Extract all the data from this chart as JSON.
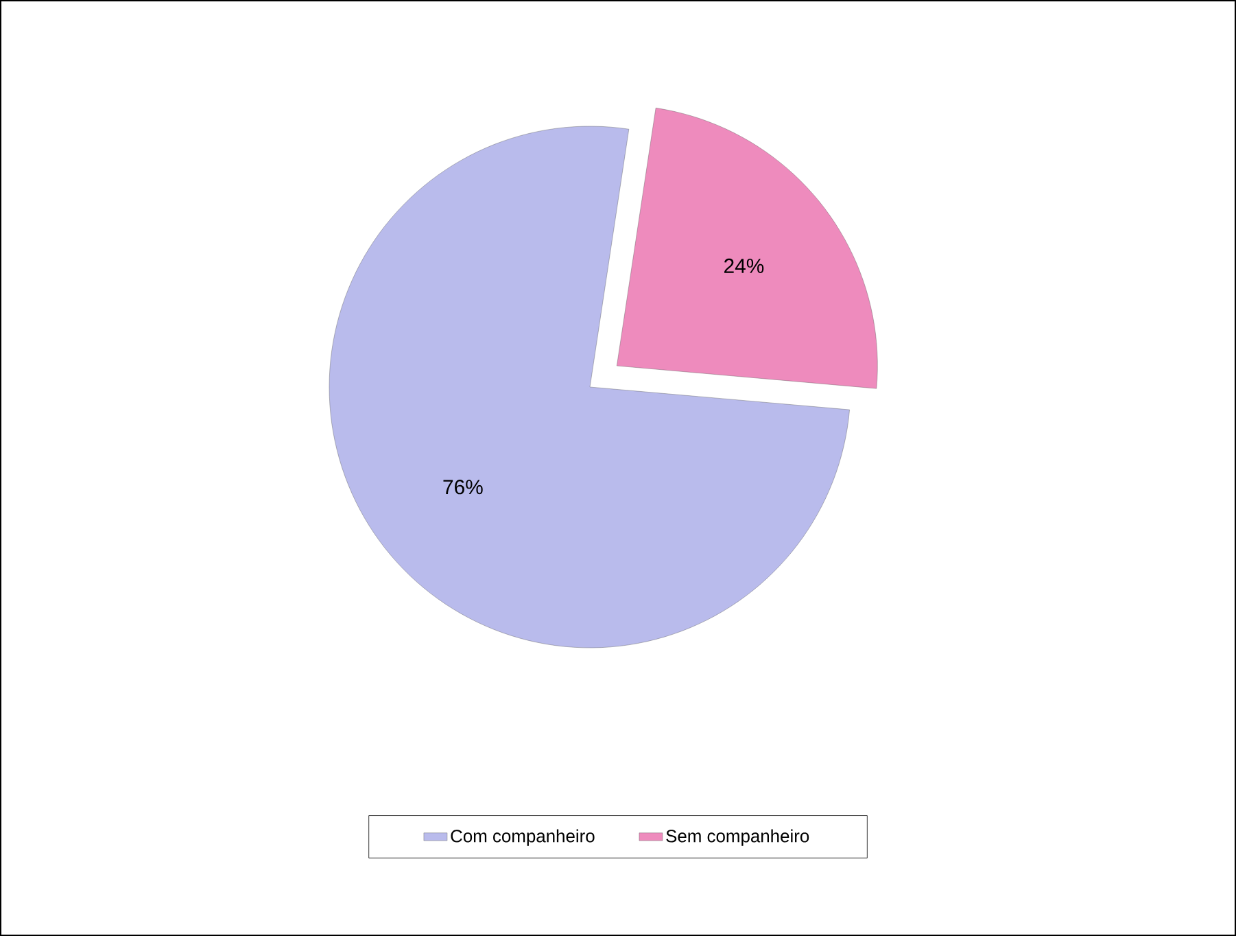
{
  "chart_data": {
    "type": "pie",
    "categories": [
      "Com companheiro",
      "Sem companheiro"
    ],
    "values": [
      76,
      24
    ],
    "colors": [
      "#b9bbec",
      "#ee8bbd"
    ],
    "value_labels": [
      "76%",
      "24%"
    ],
    "legend": "bottom"
  }
}
